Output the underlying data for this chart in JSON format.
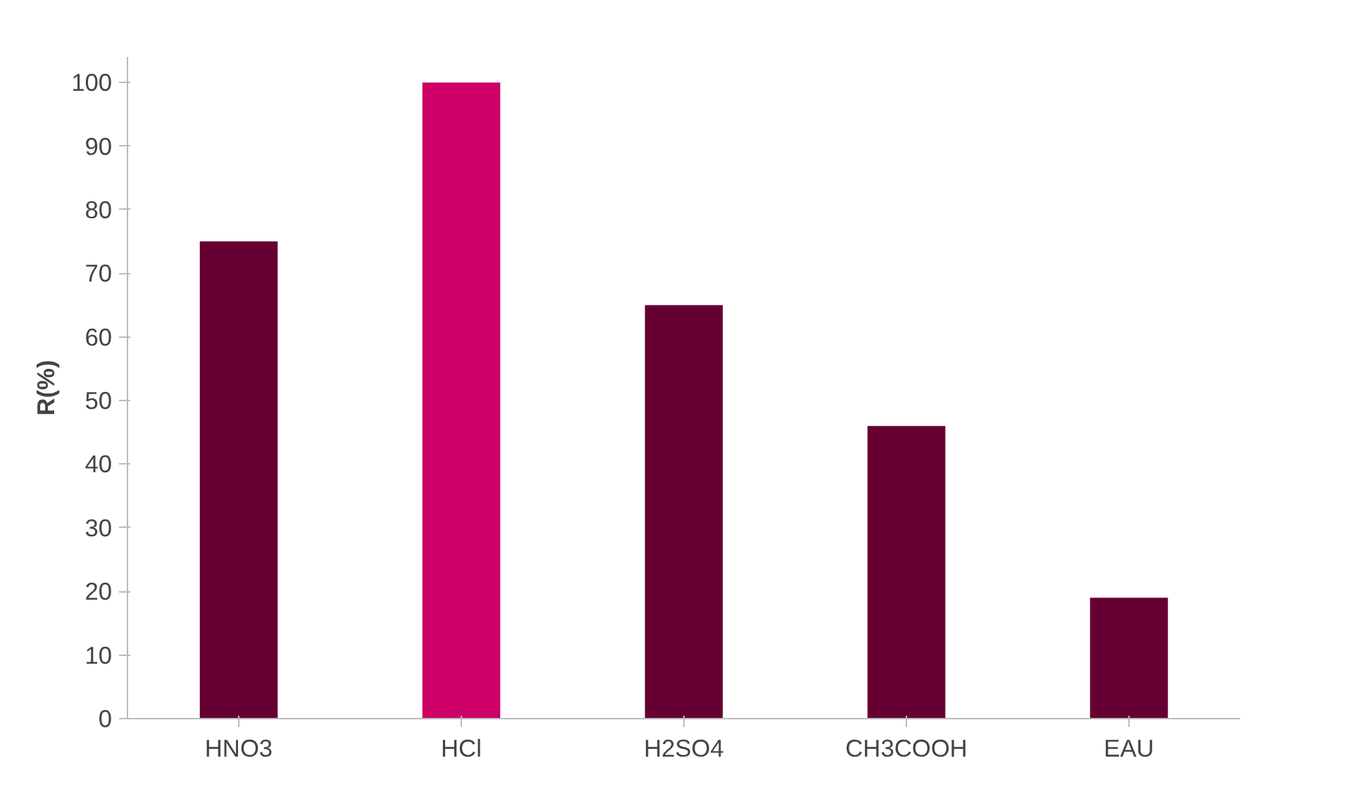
{
  "chart_data": {
    "type": "bar",
    "ylabel": "R(%)",
    "categories": [
      "HNO3",
      "HCl",
      "H2SO4",
      "CH3COOH",
      "EAU"
    ],
    "values": [
      75,
      100,
      65,
      46,
      19
    ],
    "colors": [
      "#660033",
      "#cc0066",
      "#660033",
      "#660033",
      "#660033"
    ],
    "ylim": [
      0,
      100
    ],
    "yticks": [
      0,
      10,
      20,
      30,
      40,
      50,
      60,
      70,
      80,
      90,
      100
    ],
    "grid": false
  }
}
